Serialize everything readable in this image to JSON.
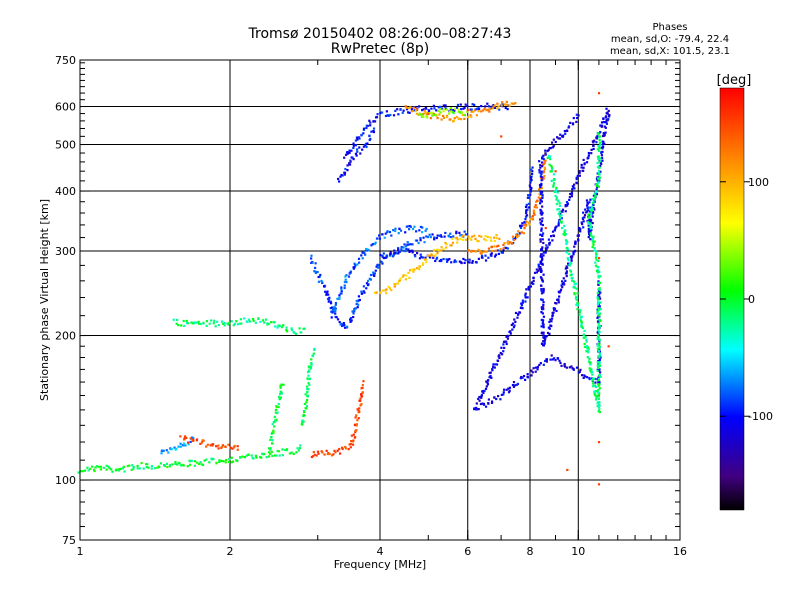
{
  "chart_data": {
    "type": "scatter",
    "title": "Tromsø 20150402 08:26:00–08:27:43",
    "subtitle": "RwPretec (8p)",
    "xlabel": "Frequency [MHz]",
    "ylabel": "Stationary phase Virtual Height [km]",
    "xscale": "log",
    "yscale": "log",
    "xlim": [
      1,
      16
    ],
    "ylim": [
      75,
      750
    ],
    "xticks": [
      "1",
      "2",
      "4",
      "6",
      "8",
      "10",
      "16"
    ],
    "yticks": [
      "75",
      "100",
      "200",
      "300",
      "400",
      "500",
      "600",
      "750"
    ],
    "grid": true,
    "colorbar": {
      "label": "[deg]",
      "ticks": [
        "100",
        "0",
        "-100"
      ],
      "range": [
        -180,
        180
      ]
    },
    "stats": {
      "heading": "Phases",
      "line_o": "mean, sd,O: -79.4, 22.4",
      "line_x": "mean, sd,X: 101.5, 23.1"
    },
    "traces": [
      {
        "phase": -10,
        "points": [
          [
            1.0,
            105
          ],
          [
            1.1,
            106
          ],
          [
            1.2,
            105
          ],
          [
            1.3,
            107
          ],
          [
            1.4,
            107
          ],
          [
            1.5,
            108
          ],
          [
            1.6,
            108
          ],
          [
            1.8,
            109
          ],
          [
            1.95,
            110
          ],
          [
            2.1,
            111
          ],
          [
            2.3,
            112
          ],
          [
            2.5,
            114
          ],
          [
            2.7,
            115
          ],
          [
            2.8,
            117
          ]
        ]
      },
      {
        "phase": -15,
        "points": [
          [
            2.8,
            130
          ],
          [
            2.85,
            150
          ],
          [
            2.9,
            175
          ],
          [
            2.95,
            190
          ]
        ]
      },
      {
        "phase": -10,
        "points": [
          [
            2.4,
            115
          ],
          [
            2.45,
            130
          ],
          [
            2.5,
            145
          ],
          [
            2.55,
            160
          ]
        ]
      },
      {
        "phase": -70,
        "points": [
          [
            1.45,
            113
          ],
          [
            1.55,
            117
          ],
          [
            1.65,
            120
          ],
          [
            1.7,
            122
          ]
        ]
      },
      {
        "phase": 150,
        "points": [
          [
            1.6,
            123
          ],
          [
            1.7,
            120
          ],
          [
            1.9,
            118
          ],
          [
            2.1,
            116
          ]
        ]
      },
      {
        "phase": 150,
        "points": [
          [
            2.9,
            113
          ],
          [
            3.0,
            113
          ],
          [
            3.2,
            114
          ],
          [
            3.4,
            116
          ],
          [
            3.5,
            118
          ],
          [
            3.55,
            125
          ],
          [
            3.6,
            135
          ],
          [
            3.65,
            145
          ],
          [
            3.7,
            160
          ]
        ]
      },
      {
        "phase": -20,
        "points": [
          [
            1.55,
            213
          ],
          [
            1.7,
            212
          ],
          [
            1.9,
            212
          ],
          [
            2.1,
            214
          ],
          [
            2.3,
            215
          ],
          [
            2.5,
            210
          ],
          [
            2.6,
            206
          ],
          [
            2.7,
            204
          ],
          [
            2.85,
            205
          ]
        ]
      },
      {
        "phase": -90,
        "points": [
          [
            2.9,
            290
          ],
          [
            3.0,
            270
          ],
          [
            3.1,
            250
          ],
          [
            3.2,
            230
          ],
          [
            3.3,
            215
          ],
          [
            3.4,
            208
          ],
          [
            3.5,
            215
          ],
          [
            3.6,
            235
          ],
          [
            3.8,
            260
          ],
          [
            4.0,
            285
          ],
          [
            4.3,
            300
          ],
          [
            4.6,
            310
          ],
          [
            5.0,
            320
          ],
          [
            5.5,
            325
          ],
          [
            6.0,
            325
          ]
        ]
      },
      {
        "phase": -80,
        "points": [
          [
            3.2,
            220
          ],
          [
            3.3,
            240
          ],
          [
            3.4,
            260
          ],
          [
            3.6,
            285
          ],
          [
            3.8,
            305
          ],
          [
            4.0,
            320
          ],
          [
            4.3,
            330
          ],
          [
            4.6,
            335
          ],
          [
            5.0,
            330
          ]
        ]
      },
      {
        "phase": -100,
        "points": [
          [
            4.0,
            295
          ],
          [
            4.5,
            300
          ],
          [
            5.0,
            290
          ],
          [
            5.5,
            285
          ],
          [
            6.0,
            285
          ],
          [
            6.5,
            290
          ],
          [
            7.0,
            300
          ],
          [
            7.5,
            320
          ],
          [
            7.8,
            350
          ],
          [
            8.0,
            400
          ],
          [
            8.1,
            450
          ]
        ]
      },
      {
        "phase": 90,
        "points": [
          [
            3.9,
            245
          ],
          [
            4.2,
            250
          ],
          [
            4.5,
            265
          ],
          [
            4.8,
            280
          ],
          [
            5.2,
            300
          ],
          [
            5.6,
            315
          ],
          [
            6.0,
            320
          ],
          [
            6.5,
            318
          ],
          [
            7.0,
            320
          ]
        ]
      },
      {
        "phase": 120,
        "points": [
          [
            6.0,
            300
          ],
          [
            6.5,
            300
          ],
          [
            7.0,
            305
          ],
          [
            7.5,
            320
          ],
          [
            8.0,
            345
          ],
          [
            8.3,
            380
          ],
          [
            8.5,
            430
          ],
          [
            8.6,
            480
          ]
        ]
      },
      {
        "phase": -100,
        "points": [
          [
            3.3,
            420
          ],
          [
            3.4,
            440
          ],
          [
            3.5,
            460
          ],
          [
            3.6,
            480
          ],
          [
            3.75,
            500
          ],
          [
            3.9,
            540
          ]
        ]
      },
      {
        "phase": -100,
        "points": [
          [
            3.4,
            470
          ],
          [
            3.5,
            490
          ],
          [
            3.6,
            510
          ],
          [
            3.7,
            530
          ],
          [
            3.8,
            550
          ],
          [
            4.0,
            575
          ],
          [
            4.5,
            590
          ],
          [
            5.0,
            595
          ],
          [
            5.5,
            595
          ],
          [
            6.0,
            600
          ],
          [
            6.5,
            600
          ],
          [
            7.0,
            600
          ],
          [
            7.3,
            595
          ]
        ]
      },
      {
        "phase": 110,
        "points": [
          [
            4.5,
            600
          ],
          [
            5.0,
            575
          ],
          [
            5.5,
            565
          ],
          [
            6.0,
            575
          ],
          [
            6.5,
            590
          ],
          [
            7.0,
            605
          ],
          [
            7.5,
            610
          ]
        ]
      },
      {
        "phase": 30,
        "points": [
          [
            4.8,
            570
          ],
          [
            5.2,
            585
          ],
          [
            5.6,
            590
          ],
          [
            6.0,
            580
          ]
        ]
      },
      {
        "phase": 150,
        "points": [
          [
            11.0,
            640
          ],
          [
            11.0,
            290
          ],
          [
            11.5,
            190
          ],
          [
            11.0,
            150
          ],
          [
            11.0,
            120
          ],
          [
            9.5,
            105
          ],
          [
            8.5,
            230
          ],
          [
            8.6,
            335
          ],
          [
            9.0,
            440
          ],
          [
            7.0,
            520
          ],
          [
            11.0,
            98
          ],
          [
            6.0,
            590
          ],
          [
            5.0,
            580
          ]
        ]
      },
      {
        "phase": -110,
        "points": [
          [
            10.0,
            575
          ],
          [
            8.4,
            465
          ],
          [
            8.5,
            190
          ],
          [
            9.0,
            230
          ],
          [
            10.5,
            380
          ],
          [
            10.5,
            320
          ],
          [
            11.5,
            590
          ],
          [
            6.2,
            140
          ],
          [
            7.0,
            150
          ],
          [
            8.8,
            180
          ],
          [
            11.0,
            160
          ],
          [
            11.0,
            260
          ]
        ]
      },
      {
        "phase": -20,
        "points": [
          [
            11.0,
            530
          ],
          [
            11.0,
            420
          ],
          [
            10.5,
            350
          ],
          [
            11.0,
            270
          ],
          [
            11.0,
            140
          ],
          [
            8.7,
            480
          ]
        ]
      }
    ]
  }
}
